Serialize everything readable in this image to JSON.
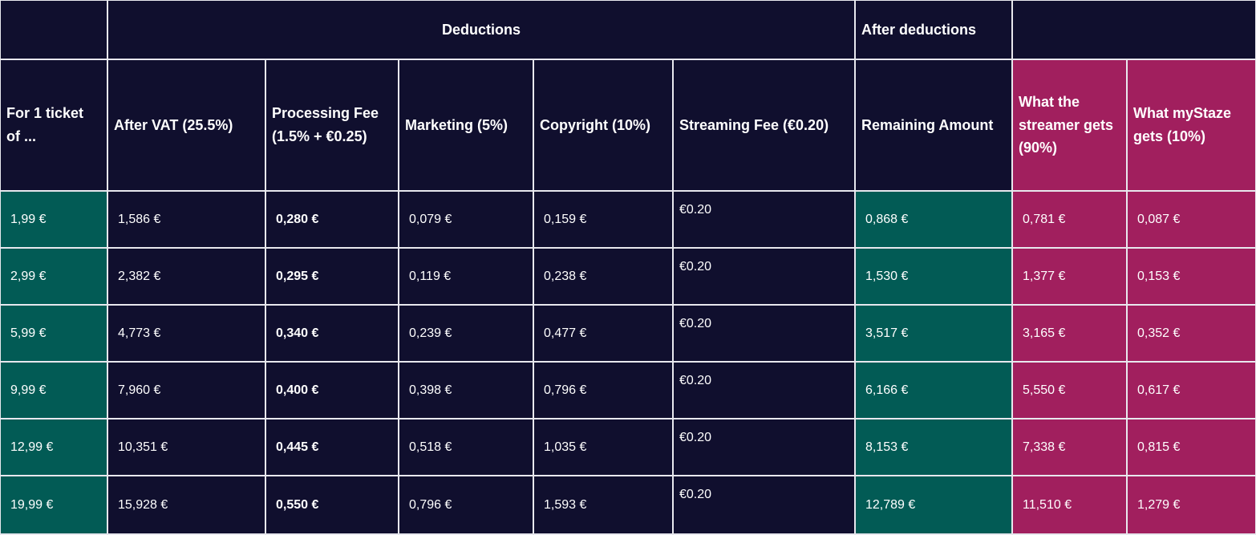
{
  "header": {
    "groups": [
      "Deductions",
      "After deductions"
    ]
  },
  "columns": [
    "For 1 ticket of ...",
    "After VAT (25.5%)",
    "Processing Fee (1.5% + €0.25)",
    "Marketing (5%)",
    "Copyright (10%)",
    "Streaming Fee (€0.20)",
    "Remaining Amount",
    "What the streamer gets (90%)",
    "What myStaze gets (10%)"
  ],
  "rows": [
    [
      "1,99 €",
      "1,586 €",
      "0,280 €",
      "0,079 €",
      "0,159 €",
      "€0.20",
      "0,868 €",
      "0,781 €",
      "0,087 €"
    ],
    [
      "2,99 €",
      "2,382 €",
      "0,295 €",
      "0,119 €",
      "0,238 €",
      "€0.20",
      "1,530 €",
      "1,377 €",
      "0,153 €"
    ],
    [
      "5,99 €",
      "4,773 €",
      "0,340 €",
      "0,239 €",
      "0,477 €",
      "€0.20",
      "3,517 €",
      "3,165 €",
      "0,352 €"
    ],
    [
      "9,99 €",
      "7,960 €",
      "0,400 €",
      "0,398 €",
      "0,796 €",
      "€0.20",
      "6,166 €",
      "5,550 €",
      "0,617 €"
    ],
    [
      "12,99 €",
      "10,351 €",
      "0,445 €",
      "0,518 €",
      "1,035 €",
      "€0.20",
      "8,153 €",
      "7,338 €",
      "0,815 €"
    ],
    [
      "19,99 €",
      "15,928 €",
      "0,550 €",
      "0,796 €",
      "1,593 €",
      "€0.20",
      "12,789 €",
      "11,510 €",
      "1,279 €"
    ]
  ]
}
